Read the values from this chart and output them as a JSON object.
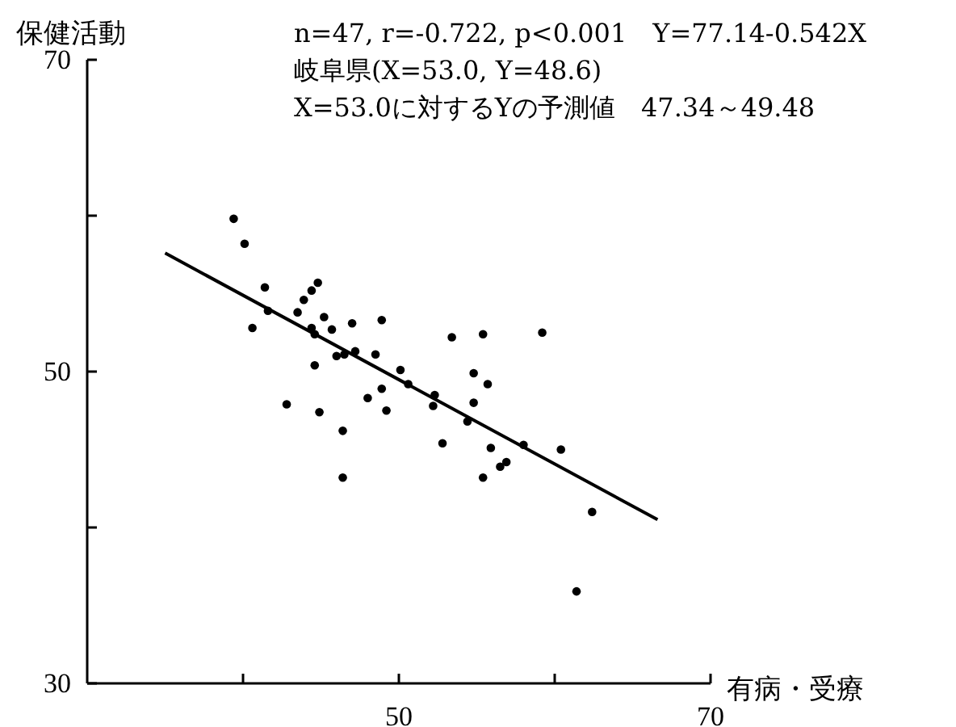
{
  "chart_data": {
    "type": "scatter",
    "xlabel": "有病・受療",
    "ylabel": "保健活動",
    "annotations": [
      "n=47, r=-0.722, p<0.001　Y=77.14-0.542X",
      "岐阜県(X=53.0, Y=48.6)",
      "X=53.0に対するYの予測値　47.34～49.48"
    ],
    "xlim": [
      30,
      70
    ],
    "ylim": [
      30,
      70
    ],
    "xticks": [
      {
        "value": 40,
        "label": null
      },
      50,
      {
        "value": 60,
        "label": null
      },
      70
    ],
    "yticks": [
      30,
      {
        "value": 40,
        "label": null
      },
      50,
      {
        "value": 60,
        "label": null
      },
      70
    ],
    "grid": false,
    "marker": "circle",
    "series": [
      {
        "color": "#000000",
        "x": [
          39.4,
          40.1,
          41.4,
          41.6,
          40.6,
          44.8,
          44.4,
          43.9,
          43.5,
          45.2,
          44.4,
          44.6,
          45.7,
          47.0,
          48.9,
          46.0,
          46.5,
          47.2,
          48.5,
          44.6,
          50.1,
          50.6,
          48.9,
          48.0,
          49.2,
          42.8,
          44.9,
          46.4,
          46.4,
          52.3,
          52.2,
          52.8,
          53.4,
          55.4,
          59.2,
          54.8,
          55.7,
          54.8,
          54.4,
          55.9,
          58.0,
          60.4,
          56.9,
          56.5,
          55.4,
          62.4,
          61.4
        ],
        "values": [
          59.8,
          58.2,
          55.4,
          53.9,
          52.8,
          55.7,
          55.2,
          54.6,
          53.8,
          53.5,
          52.8,
          52.4,
          52.7,
          53.1,
          53.3,
          51.0,
          51.1,
          51.3,
          51.1,
          50.4,
          50.1,
          49.2,
          48.9,
          48.3,
          47.5,
          47.9,
          47.4,
          46.2,
          43.2,
          48.5,
          47.8,
          45.4,
          52.2,
          52.4,
          52.5,
          49.9,
          49.2,
          48.0,
          46.8,
          45.1,
          45.3,
          45.0,
          44.2,
          43.9,
          43.2,
          41.0,
          35.9
        ]
      },
      {
        "type": "line",
        "marker": "none",
        "color": "#000000",
        "x": [
          35,
          66.6
        ],
        "values": [
          57.6,
          40.5
        ]
      }
    ]
  }
}
